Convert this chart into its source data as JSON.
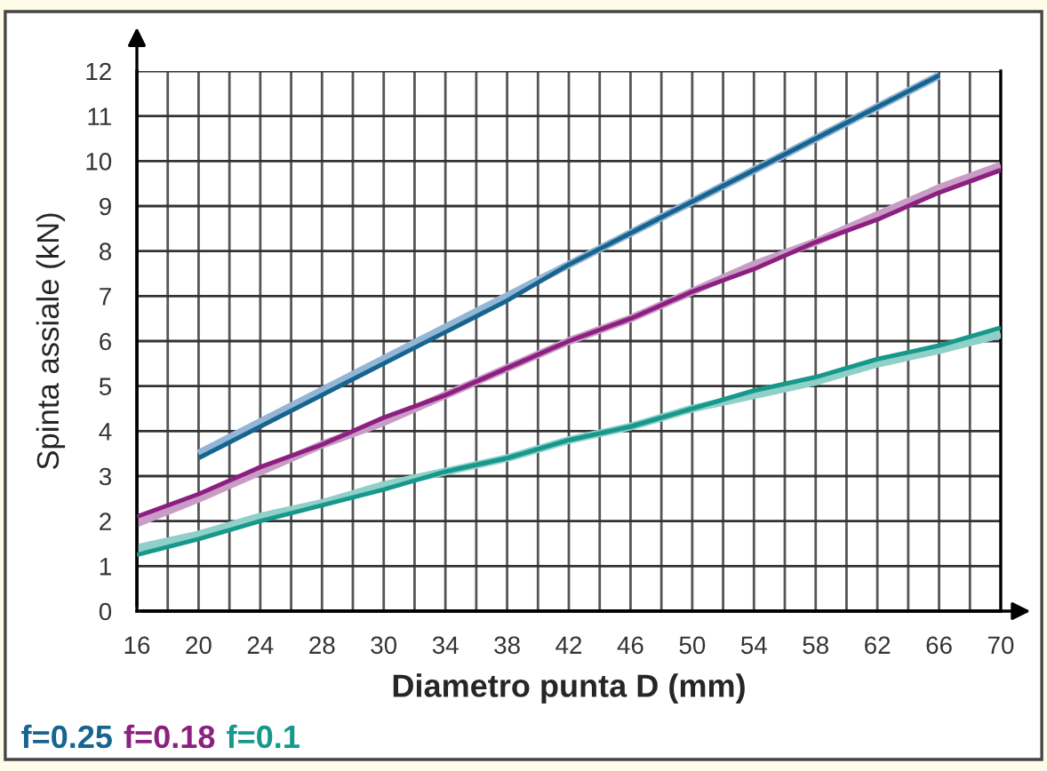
{
  "chart_data": {
    "type": "line",
    "xlabel": "Diametro punta D (mm)",
    "ylabel": "Spinta assiale (kN)",
    "categories": [
      "16",
      "20",
      "24",
      "28",
      "30",
      "34",
      "38",
      "42",
      "46",
      "50",
      "54",
      "58",
      "62",
      "66",
      "70"
    ],
    "ylim": [
      0,
      12
    ],
    "yticks": [
      0,
      1,
      2,
      3,
      4,
      5,
      6,
      7,
      8,
      9,
      10,
      11,
      12
    ],
    "grid": true,
    "legend": "bottom left",
    "marker": "none",
    "line_style": "solid",
    "series": [
      {
        "color": "#93b6d6",
        "values": [
          null,
          3.5,
          4.2,
          4.9,
          5.6,
          6.3,
          7.0,
          7.7,
          8.4,
          9.1,
          9.8,
          10.5,
          11.2,
          11.9,
          null
        ]
      },
      {
        "name": "f=0.25",
        "color": "#17648f",
        "values": [
          null,
          3.4,
          4.1,
          4.8,
          5.5,
          6.2,
          6.9,
          7.7,
          8.4,
          9.1,
          9.8,
          10.5,
          11.2,
          11.9,
          null
        ]
      },
      {
        "color": "#c99cc6",
        "values": [
          1.95,
          2.5,
          3.1,
          3.7,
          4.2,
          4.8,
          5.4,
          6.0,
          6.5,
          7.1,
          7.7,
          8.2,
          8.8,
          9.4,
          9.9
        ]
      },
      {
        "name": "f=0.18",
        "color": "#8c1f7f",
        "values": [
          2.1,
          2.6,
          3.2,
          3.7,
          4.3,
          4.8,
          5.4,
          6.0,
          6.5,
          7.1,
          7.6,
          8.2,
          8.7,
          9.3,
          9.8
        ]
      },
      {
        "color": "#8fd0c9",
        "values": [
          1.4,
          1.7,
          2.1,
          2.4,
          2.8,
          3.1,
          3.4,
          3.8,
          4.1,
          4.5,
          4.8,
          5.1,
          5.5,
          5.8,
          6.15
        ]
      },
      {
        "name": "f=0.1",
        "color": "#16988b",
        "values": [
          1.25,
          1.6,
          2.0,
          2.35,
          2.7,
          3.1,
          3.4,
          3.8,
          4.1,
          4.5,
          4.9,
          5.2,
          5.6,
          5.9,
          6.3
        ]
      }
    ]
  }
}
